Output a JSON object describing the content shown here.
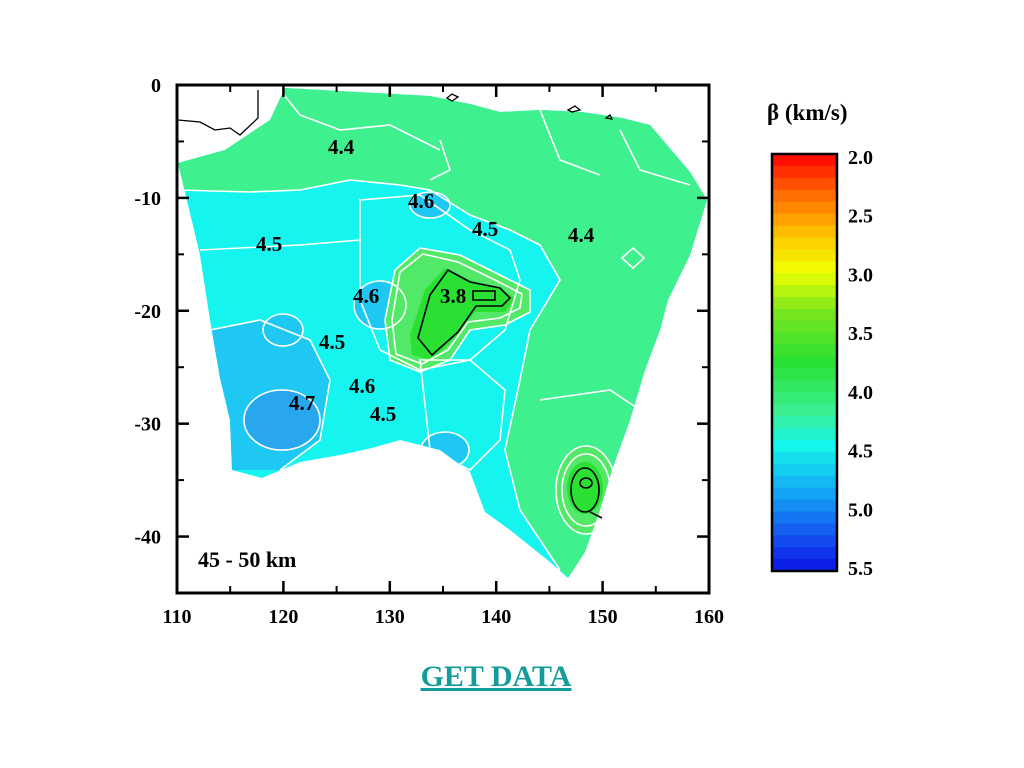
{
  "map": {
    "depth_label": "45 - 50 km",
    "x_ticks": [
      "110",
      "120",
      "130",
      "140",
      "150",
      "160"
    ],
    "y_ticks": [
      "0",
      "-10",
      "-20",
      "-30",
      "-40"
    ],
    "contour_labels": [
      "4.4",
      "4.6",
      "4.5",
      "4.4",
      "4.5",
      "4.6",
      "3.8",
      "4.5",
      "4.6",
      "4.7",
      "4.5"
    ]
  },
  "colorbar": {
    "title": "β (km/s)",
    "ticks": [
      "2.0",
      "2.5",
      "3.0",
      "3.5",
      "4.0",
      "4.5",
      "5.0",
      "5.5"
    ]
  },
  "link": {
    "label": "GET DATA"
  },
  "colors": {
    "shallow_green": "#3ff08f",
    "cyan": "#15f4ee",
    "light_blue": "#1fc8f3",
    "blue": "#28a7ee",
    "green": "#2ae033",
    "link": "#139c9a"
  }
}
